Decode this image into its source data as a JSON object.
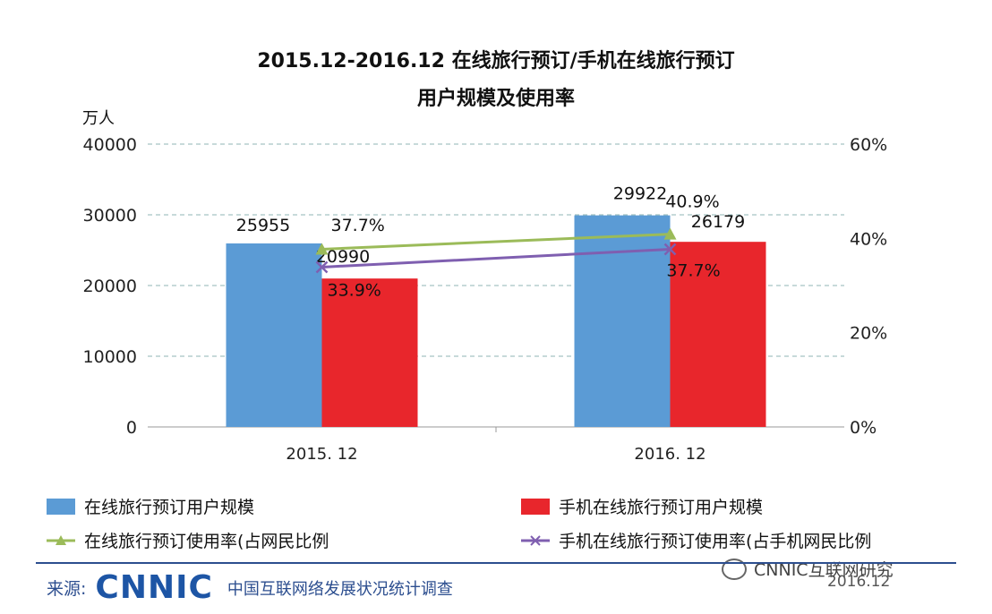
{
  "chart_data": {
    "type": "bar",
    "title": "2015.12-2016.12 在线旅行预订/手机在线旅行预订",
    "subtitle": "用户规模及使用率",
    "ylabel": "万人",
    "ylim": [
      0,
      40000
    ],
    "y_ticks": [
      "0",
      "10000",
      "20000",
      "30000",
      "40000"
    ],
    "y2lim": [
      0,
      0.6
    ],
    "y2_ticks": [
      "0%",
      "20%",
      "40%",
      "60%"
    ],
    "categories": [
      "2015. 12",
      "2016. 12"
    ],
    "series": [
      {
        "name": "在线旅行预订用户规模",
        "kind": "bar",
        "axis": "left",
        "color": "#5b9bd5",
        "values": [
          25955,
          29922
        ],
        "labels": [
          "25955",
          "29922"
        ]
      },
      {
        "name": "手机在线旅行预订用户规模",
        "kind": "bar",
        "axis": "left",
        "color": "#e8262c",
        "values": [
          20990,
          26179
        ],
        "labels": [
          "20990",
          "26179"
        ]
      },
      {
        "name": "在线旅行预订使用率(占网民比例",
        "kind": "line",
        "marker": "triangle",
        "axis": "right",
        "color": "#9bbb59",
        "values": [
          0.377,
          0.409
        ],
        "labels": [
          "37.7%",
          "40.9%"
        ]
      },
      {
        "name": "手机在线旅行预订使用率(占手机网民比例",
        "kind": "line",
        "marker": "x",
        "axis": "right",
        "color": "#7f5fb0",
        "values": [
          0.339,
          0.377
        ],
        "labels": [
          "33.9%",
          "37.7%"
        ]
      }
    ],
    "grid": true,
    "legend_position": "bottom"
  },
  "footer": {
    "source_label": "来源:",
    "logo_text": "CNNIC",
    "source_desc": "中国互联网络发展状况统计调查",
    "date": "2016.12",
    "account": "CNNIC互联网研究"
  }
}
